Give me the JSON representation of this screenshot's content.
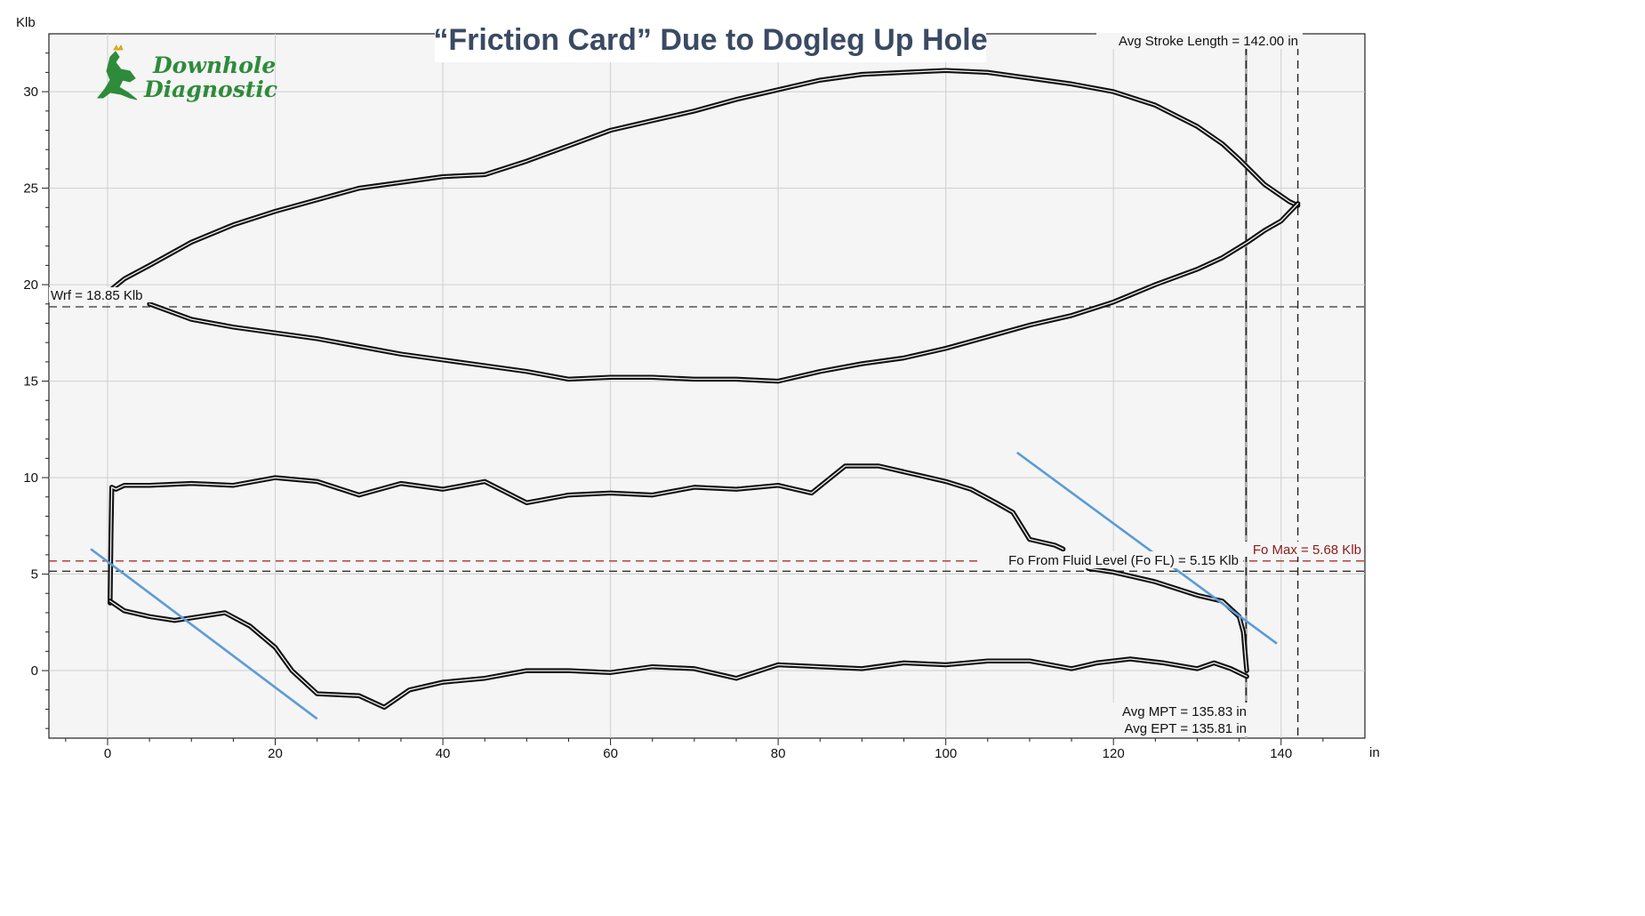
{
  "chart_data": {
    "type": "line",
    "title": "“Friction Card”  Due to Dogleg Up Hole",
    "ylabel": "Klb",
    "xlabel": "in",
    "xlim": [
      -7,
      150
    ],
    "ylim": [
      -3.5,
      33
    ],
    "x_ticks": [
      0,
      20,
      40,
      60,
      80,
      100,
      120,
      140
    ],
    "y_ticks": [
      0,
      5,
      10,
      15,
      20,
      25,
      30
    ],
    "grid": true,
    "logo": [
      "Downhole",
      "Diagnostic"
    ],
    "annotations": {
      "stroke_length": "Avg Stroke Length = 142.00 in",
      "wrf": "Wrf = 18.85 Klb",
      "fo_fl": "Fo From Fluid Level (Fo FL) = 5.15 Klb",
      "fo_max": "Fo Max = 5.68 Klb",
      "mpt": "Avg MPT = 135.83 in",
      "ept": "Avg EPT = 135.81 in"
    },
    "reference_lines": {
      "wrf_y": 18.85,
      "fo_fl_y": 5.15,
      "fo_max_y": 5.68,
      "mpt_x": 135.83,
      "stroke_x": 142.0
    },
    "colors": {
      "cards": "#111111",
      "fo_max": "#b03030",
      "guide": "#5b9bd5",
      "grid": "#cfcfcf",
      "plot_bg": "#f5f5f5"
    },
    "series": [
      {
        "values": [
          [
            0,
            19.6
          ],
          [
            2,
            20.3
          ],
          [
            5,
            21.0
          ],
          [
            10,
            22.2
          ],
          [
            15,
            23.1
          ],
          [
            20,
            23.8
          ],
          [
            25,
            24.4
          ],
          [
            30,
            25.0
          ],
          [
            35,
            25.3
          ],
          [
            40,
            25.6
          ],
          [
            45,
            25.7
          ],
          [
            50,
            26.4
          ],
          [
            55,
            27.2
          ],
          [
            60,
            28.0
          ],
          [
            65,
            28.5
          ],
          [
            70,
            29.0
          ],
          [
            75,
            29.6
          ],
          [
            80,
            30.1
          ],
          [
            85,
            30.6
          ],
          [
            90,
            30.9
          ],
          [
            95,
            31.0
          ],
          [
            100,
            31.1
          ],
          [
            105,
            31.0
          ],
          [
            110,
            30.7
          ],
          [
            115,
            30.4
          ],
          [
            120,
            30.0
          ],
          [
            125,
            29.3
          ],
          [
            130,
            28.2
          ],
          [
            133,
            27.3
          ],
          [
            135,
            26.5
          ],
          [
            138,
            25.2
          ],
          [
            141,
            24.3
          ],
          [
            142,
            24.1
          ]
        ]
      },
      {
        "values": [
          [
            142,
            24.2
          ],
          [
            140,
            23.3
          ],
          [
            138,
            22.8
          ],
          [
            136,
            22.2
          ],
          [
            133,
            21.4
          ],
          [
            130,
            20.8
          ],
          [
            125,
            20.0
          ],
          [
            120,
            19.1
          ],
          [
            115,
            18.4
          ],
          [
            110,
            17.9
          ],
          [
            105,
            17.3
          ],
          [
            100,
            16.7
          ],
          [
            95,
            16.2
          ],
          [
            90,
            15.9
          ],
          [
            85,
            15.5
          ],
          [
            80,
            15.0
          ],
          [
            75,
            15.1
          ],
          [
            70,
            15.1
          ],
          [
            65,
            15.2
          ],
          [
            60,
            15.2
          ],
          [
            55,
            15.1
          ],
          [
            50,
            15.5
          ],
          [
            45,
            15.8
          ],
          [
            40,
            16.1
          ],
          [
            35,
            16.4
          ],
          [
            30,
            16.8
          ],
          [
            25,
            17.2
          ],
          [
            20,
            17.5
          ],
          [
            15,
            17.8
          ],
          [
            10,
            18.2
          ],
          [
            5,
            19.0
          ]
        ]
      },
      {
        "values": [
          [
            0.3,
            3.5
          ],
          [
            0.4,
            7.0
          ],
          [
            0.5,
            9.5
          ],
          [
            1,
            9.4
          ],
          [
            2,
            9.6
          ],
          [
            5,
            9.6
          ],
          [
            10,
            9.7
          ],
          [
            15,
            9.6
          ],
          [
            20,
            10.0
          ],
          [
            25,
            9.8
          ],
          [
            30,
            9.1
          ],
          [
            35,
            9.7
          ],
          [
            40,
            9.4
          ],
          [
            45,
            9.8
          ],
          [
            50,
            8.7
          ],
          [
            55,
            9.1
          ],
          [
            60,
            9.2
          ],
          [
            65,
            9.1
          ],
          [
            70,
            9.5
          ],
          [
            75,
            9.4
          ],
          [
            80,
            9.6
          ],
          [
            84,
            9.2
          ],
          [
            88,
            10.6
          ],
          [
            92,
            10.6
          ],
          [
            96,
            10.2
          ],
          [
            100,
            9.8
          ],
          [
            103,
            9.4
          ],
          [
            106,
            8.7
          ],
          [
            108,
            8.2
          ],
          [
            110,
            6.8
          ],
          [
            113,
            6.5
          ],
          [
            114,
            6.3
          ]
        ]
      },
      {
        "values": [
          [
            117,
            5.3
          ],
          [
            120,
            5.1
          ],
          [
            125,
            4.6
          ],
          [
            130,
            3.9
          ],
          [
            133,
            3.6
          ],
          [
            135,
            2.8
          ],
          [
            135.5,
            2.0
          ],
          [
            135.8,
            0.5
          ],
          [
            135.9,
            0.0
          ]
        ]
      },
      {
        "values": [
          [
            135.9,
            -0.3
          ],
          [
            134,
            0.1
          ],
          [
            132,
            0.4
          ],
          [
            130,
            0.1
          ],
          [
            126,
            0.4
          ],
          [
            122,
            0.6
          ],
          [
            118,
            0.4
          ],
          [
            115,
            0.1
          ],
          [
            110,
            0.5
          ],
          [
            105,
            0.5
          ],
          [
            100,
            0.3
          ],
          [
            95,
            0.4
          ],
          [
            90,
            0.1
          ],
          [
            85,
            0.2
          ],
          [
            80,
            0.3
          ],
          [
            75,
            -0.4
          ],
          [
            70,
            0.1
          ],
          [
            65,
            0.2
          ],
          [
            60,
            -0.1
          ],
          [
            55,
            0.0
          ],
          [
            50,
            0.0
          ],
          [
            45,
            -0.4
          ],
          [
            40,
            -0.6
          ],
          [
            36,
            -1.0
          ],
          [
            33,
            -1.9
          ],
          [
            30,
            -1.3
          ],
          [
            25,
            -1.2
          ],
          [
            22,
            0.0
          ],
          [
            20,
            1.2
          ],
          [
            17,
            2.3
          ],
          [
            14,
            3.0
          ],
          [
            11,
            2.8
          ],
          [
            8,
            2.6
          ],
          [
            5,
            2.8
          ],
          [
            2,
            3.1
          ],
          [
            0.3,
            3.6
          ]
        ]
      }
    ],
    "guide_lines": [
      {
        "x1": -2,
        "y1": 6.3,
        "x2": 25,
        "y2": -2.5
      },
      {
        "x1": 108.5,
        "y1": 11.3,
        "x2": 139.5,
        "y2": 1.4
      }
    ]
  }
}
